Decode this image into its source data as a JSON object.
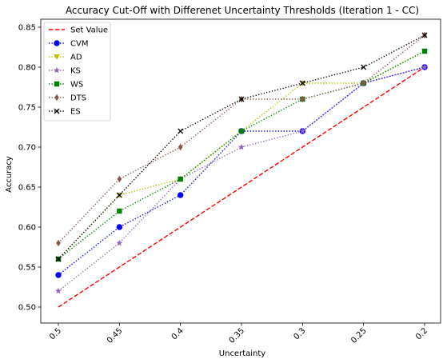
{
  "chart_data": {
    "type": "line",
    "title": "Accuracy Cut-Off with Differenet Uncertainty Thresholds (Iteration 1 - CC)",
    "xlabel": "Uncertainty",
    "ylabel": "Accuracy",
    "categories": [
      "0.5",
      "0.45",
      "0.4",
      "0.35",
      "0.3",
      "0.25",
      "0.2"
    ],
    "ylim": [
      0.48,
      0.86
    ],
    "yticks": [
      "0.50",
      "0.55",
      "0.60",
      "0.65",
      "0.70",
      "0.75",
      "0.80",
      "0.85"
    ],
    "grid": false,
    "legend_position": "top-left",
    "series": [
      {
        "name": "Set Value",
        "color": "#ff0000",
        "line": "dashed",
        "marker": "none",
        "values": [
          0.5,
          0.55,
          0.6,
          0.65,
          0.7,
          0.75,
          0.8
        ]
      },
      {
        "name": "CVM",
        "color": "#0000ff",
        "line": "dotted",
        "marker": "circle",
        "values": [
          0.54,
          0.6,
          0.64,
          0.72,
          0.72,
          0.78,
          0.8
        ]
      },
      {
        "name": "AD",
        "color": "#bfbf00",
        "line": "dotted",
        "marker": "triangle-down",
        "values": [
          0.56,
          0.64,
          0.66,
          0.72,
          0.78,
          0.78,
          0.82
        ]
      },
      {
        "name": "KS",
        "color": "#9467bd",
        "line": "dotted",
        "marker": "star",
        "values": [
          0.52,
          0.58,
          0.66,
          0.7,
          0.72,
          0.78,
          0.8
        ]
      },
      {
        "name": "WS",
        "color": "#008000",
        "line": "dotted",
        "marker": "square",
        "values": [
          0.56,
          0.62,
          0.66,
          0.72,
          0.76,
          0.78,
          0.82
        ]
      },
      {
        "name": "DTS",
        "color": "#8c564b",
        "line": "dotted",
        "marker": "thin-diamond",
        "values": [
          0.58,
          0.66,
          0.7,
          0.76,
          0.76,
          0.78,
          0.84
        ]
      },
      {
        "name": "ES",
        "color": "#000000",
        "line": "dotted",
        "marker": "x",
        "values": [
          0.56,
          0.64,
          0.72,
          0.76,
          0.78,
          0.8,
          0.84
        ]
      }
    ]
  }
}
